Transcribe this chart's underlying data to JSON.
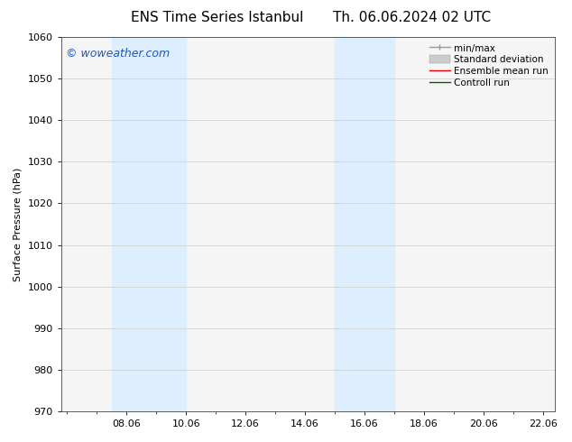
{
  "title_left": "ENS Time Series Istanbul",
  "title_right": "Th. 06.06.2024 02 UTC",
  "ylabel": "Surface Pressure (hPa)",
  "ylim": [
    970,
    1060
  ],
  "yticks": [
    970,
    980,
    990,
    1000,
    1010,
    1020,
    1030,
    1040,
    1050,
    1060
  ],
  "xtick_labels": [
    "08.06",
    "10.06",
    "12.06",
    "14.06",
    "16.06",
    "18.06",
    "20.06",
    "22.06"
  ],
  "xtick_positions": [
    2,
    4,
    6,
    8,
    10,
    12,
    14,
    16
  ],
  "xlim": [
    -0.2,
    16.4
  ],
  "shaded_bands": [
    {
      "x_start": 1.5,
      "x_end": 4.0
    },
    {
      "x_start": 9.0,
      "x_end": 11.0
    }
  ],
  "shade_color": "#ddeeff",
  "plot_bg_color": "#f5f5f5",
  "fig_bg_color": "#ffffff",
  "watermark_text": "© woweather.com",
  "watermark_color": "#2255bb",
  "legend_items": [
    {
      "label": "min/max",
      "color": "#999999",
      "lw": 1.0
    },
    {
      "label": "Standard deviation",
      "color": "#cccccc",
      "lw": 5
    },
    {
      "label": "Ensemble mean run",
      "color": "#dd0000",
      "lw": 1.0
    },
    {
      "label": "Controll run",
      "color": "#006600",
      "lw": 1.0
    }
  ],
  "title_fontsize": 11,
  "ylabel_fontsize": 8,
  "tick_fontsize": 8,
  "watermark_fontsize": 9,
  "legend_fontsize": 7.5
}
